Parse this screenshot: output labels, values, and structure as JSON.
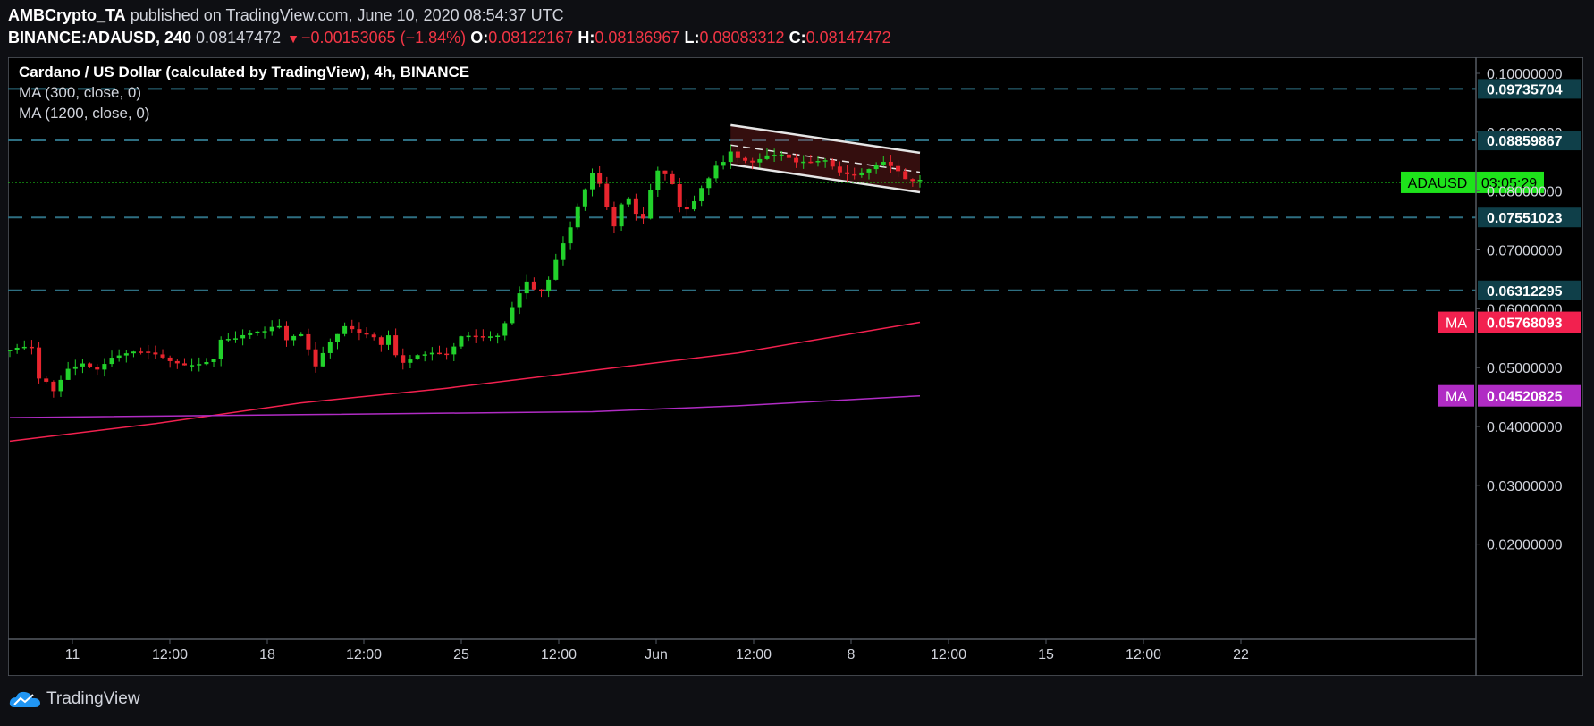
{
  "header": {
    "publisher": "AMBCrypto_TA",
    "published_text": "published on TradingView.com, June 10, 2020 08:54:37 UTC",
    "symbol": "BINANCE:ADAUSD, 240",
    "last_price": "0.08147472",
    "change": "−0.00153065 (−1.84%)",
    "o_label": "O:",
    "o_value": "0.08122167",
    "h_label": "H:",
    "h_value": "0.08186967",
    "l_label": "L:",
    "l_value": "0.08083312",
    "c_label": "C:",
    "c_value": "0.08147472"
  },
  "legend": {
    "title": "Cardano / US Dollar (calculated by TradingView), 4h, BINANCE",
    "ma1": "MA (300, close, 0)",
    "ma2": "MA (1200, close, 0)"
  },
  "footer": {
    "brand": "TradingView"
  },
  "colors": {
    "background": "#000000",
    "up": "#22d12b",
    "down": "#e8252e",
    "ma300": "#f2214f",
    "ma1200": "#b02cc4",
    "hline": "#2e6f82",
    "label_teal": "#0f3f49",
    "current_price": "#1ee31b"
  },
  "chart_data": {
    "type": "candlestick",
    "symbol": "ADAUSD",
    "timeframe": "4h",
    "ylim": [
      0.015,
      0.105
    ],
    "y_ticks": [
      "0.10000000",
      "0.09000000",
      "0.08000000",
      "0.07000000",
      "0.06000000",
      "0.05000000",
      "0.04000000",
      "0.03000000",
      "0.02000000"
    ],
    "x_ticks": [
      "11",
      "12:00",
      "18",
      "12:00",
      "25",
      "12:00",
      "Jun",
      "12:00",
      "8",
      "12:00",
      "15",
      "12:00",
      "22"
    ],
    "horizontal_levels": [
      "0.09735704",
      "0.08859867",
      "0.07551023",
      "0.06312295"
    ],
    "current_price": {
      "label": "ADAUSD",
      "countdown": "03:05:29",
      "value": 0.08147472
    },
    "ma_labels": [
      {
        "name": "MA",
        "value": "0.05768093",
        "color": "#f2214f"
      },
      {
        "name": "MA",
        "value": "0.04520825",
        "color": "#b02cc4"
      }
    ],
    "price_path": [
      [
        0,
        0.053
      ],
      [
        1.5,
        0.053
      ],
      [
        3.2,
        0.0525
      ],
      [
        3.5,
        0.047
      ],
      [
        4.5,
        0.0475
      ],
      [
        6,
        0.0455
      ],
      [
        8,
        0.05
      ],
      [
        10,
        0.0515
      ],
      [
        12,
        0.0505
      ],
      [
        14,
        0.052
      ],
      [
        17,
        0.052
      ],
      [
        20,
        0.0515
      ],
      [
        22,
        0.051
      ],
      [
        24,
        0.051
      ],
      [
        26,
        0.0515
      ],
      [
        28,
        0.052
      ],
      [
        29,
        0.055
      ],
      [
        31,
        0.0545
      ],
      [
        33,
        0.055
      ],
      [
        35,
        0.0555
      ],
      [
        36,
        0.0565
      ],
      [
        37,
        0.057
      ],
      [
        38,
        0.055
      ],
      [
        39,
        0.056
      ],
      [
        40,
        0.0565
      ],
      [
        41,
        0.054
      ],
      [
        42,
        0.051
      ],
      [
        43,
        0.053
      ],
      [
        44,
        0.0545
      ],
      [
        46,
        0.0565
      ],
      [
        48,
        0.055
      ],
      [
        50,
        0.0545
      ],
      [
        51,
        0.0535
      ],
      [
        52,
        0.0555
      ],
      [
        53,
        0.0525
      ],
      [
        54,
        0.0515
      ],
      [
        56,
        0.053
      ],
      [
        58,
        0.053
      ],
      [
        60,
        0.052
      ],
      [
        61,
        0.053
      ],
      [
        62,
        0.0545
      ],
      [
        63,
        0.0545
      ],
      [
        65,
        0.0545
      ],
      [
        66,
        0.055
      ],
      [
        67,
        0.0555
      ],
      [
        68,
        0.058
      ],
      [
        69,
        0.061
      ],
      [
        70,
        0.0635
      ],
      [
        71,
        0.0655
      ],
      [
        72,
        0.064
      ],
      [
        73,
        0.0635
      ],
      [
        74,
        0.065
      ],
      [
        75,
        0.068
      ],
      [
        76,
        0.0705
      ],
      [
        77,
        0.073
      ],
      [
        78,
        0.0765
      ],
      [
        79,
        0.0795
      ],
      [
        80,
        0.0825
      ],
      [
        81,
        0.081
      ],
      [
        82,
        0.0775
      ],
      [
        83,
        0.0745
      ],
      [
        84,
        0.0785
      ],
      [
        85,
        0.0795
      ],
      [
        86,
        0.077
      ],
      [
        87,
        0.076
      ],
      [
        88,
        0.0805
      ],
      [
        89,
        0.0835
      ],
      [
        90,
        0.0825
      ],
      [
        91,
        0.0805
      ],
      [
        92,
        0.0765
      ],
      [
        93,
        0.076
      ],
      [
        94,
        0.0775
      ],
      [
        95,
        0.08
      ],
      [
        96,
        0.082
      ],
      [
        97,
        0.0845
      ],
      [
        98,
        0.0855
      ],
      [
        99,
        0.0875
      ],
      [
        100,
        0.0865
      ],
      [
        102,
        0.0855
      ],
      [
        104,
        0.086
      ],
      [
        106,
        0.0855
      ],
      [
        108,
        0.084
      ],
      [
        110,
        0.0845
      ],
      [
        112,
        0.0855
      ],
      [
        114,
        0.084
      ],
      [
        116,
        0.0835
      ],
      [
        118,
        0.084
      ],
      [
        120,
        0.0845
      ],
      [
        122,
        0.0825
      ],
      [
        123.5,
        0.0805
      ],
      [
        124.5,
        0.0815
      ]
    ],
    "ma300": [
      [
        0,
        0.0375
      ],
      [
        20,
        0.0405
      ],
      [
        40,
        0.044
      ],
      [
        60,
        0.0465
      ],
      [
        80,
        0.0495
      ],
      [
        100,
        0.0525
      ],
      [
        125,
        0.0577
      ]
    ],
    "ma1200": [
      [
        0,
        0.0415
      ],
      [
        40,
        0.042
      ],
      [
        80,
        0.0425
      ],
      [
        100,
        0.0435
      ],
      [
        125,
        0.0452
      ]
    ],
    "channel": {
      "upper": [
        [
          99,
          0.0912
        ],
        [
          125,
          0.0865
        ]
      ],
      "lower": [
        [
          99,
          0.0845
        ],
        [
          125,
          0.0798
        ]
      ],
      "mid": [
        [
          99,
          0.0878
        ],
        [
          125,
          0.0832
        ]
      ]
    }
  }
}
